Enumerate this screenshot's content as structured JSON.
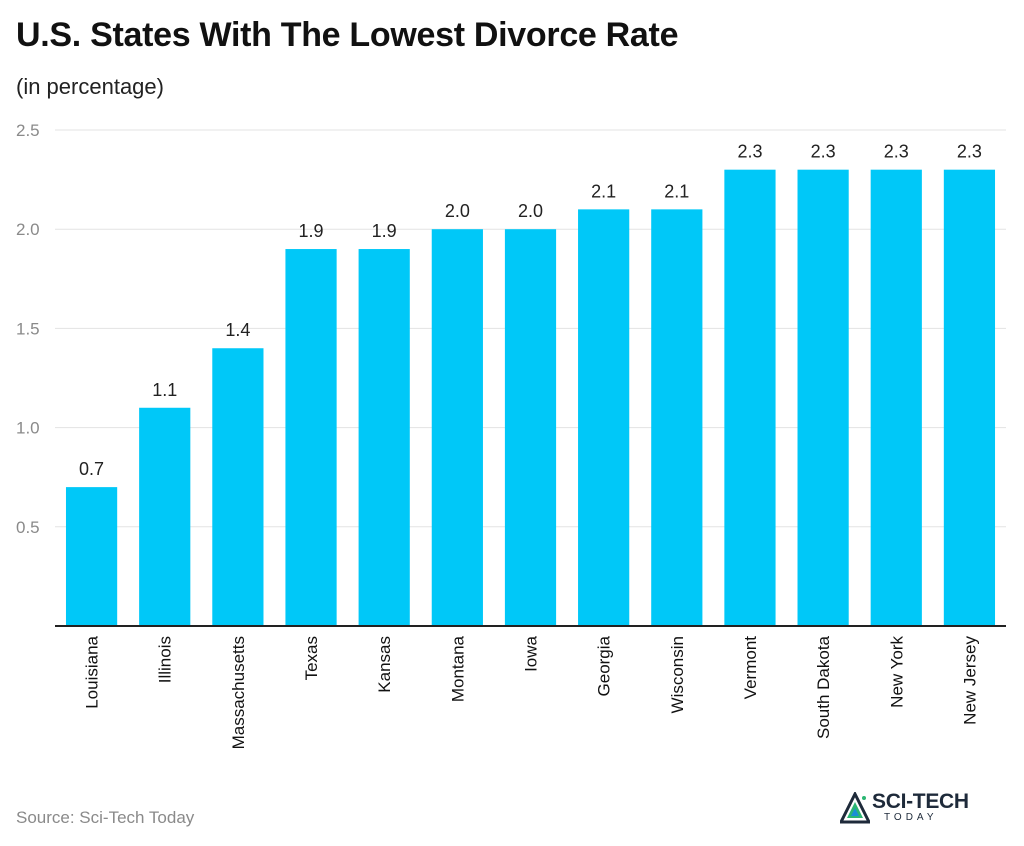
{
  "chart_data": {
    "type": "bar",
    "title": "U.S. States With The Lowest Divorce Rate",
    "subtitle": "(in percentage)",
    "categories": [
      "Louisiana",
      "Illinois",
      "Massachusetts",
      "Texas",
      "Kansas",
      "Montana",
      "Iowa",
      "Georgia",
      "Wisconsin",
      "Vermont",
      "South Dakota",
      "New York",
      "New Jersey"
    ],
    "values": [
      0.7,
      1.1,
      1.4,
      1.9,
      1.9,
      2.0,
      2.0,
      2.1,
      2.1,
      2.3,
      2.3,
      2.3,
      2.3
    ],
    "data_labels": [
      "0.7",
      "1.1",
      "1.4",
      "1.9",
      "1.9",
      "2.0",
      "2.0",
      "2.1",
      "2.1",
      "2.3",
      "2.3",
      "2.3",
      "2.3"
    ],
    "ylim": [
      0,
      2.5
    ],
    "yticks": [
      0.5,
      1.0,
      1.5,
      2.0,
      2.5
    ],
    "ytick_labels": [
      "0.5",
      "1.0",
      "1.5",
      "2.0",
      "2.5"
    ],
    "grid": true,
    "bar_color": "#00c8f8",
    "xlabel": "",
    "ylabel": ""
  },
  "source": "Source: Sci-Tech Today",
  "logo": {
    "text": "SCI-TECH",
    "subtext": "TODAY",
    "icon": "sci-tech-logo-icon",
    "colors": [
      "#1e2a3a",
      "#2bb673",
      "#1a8fd6"
    ]
  }
}
